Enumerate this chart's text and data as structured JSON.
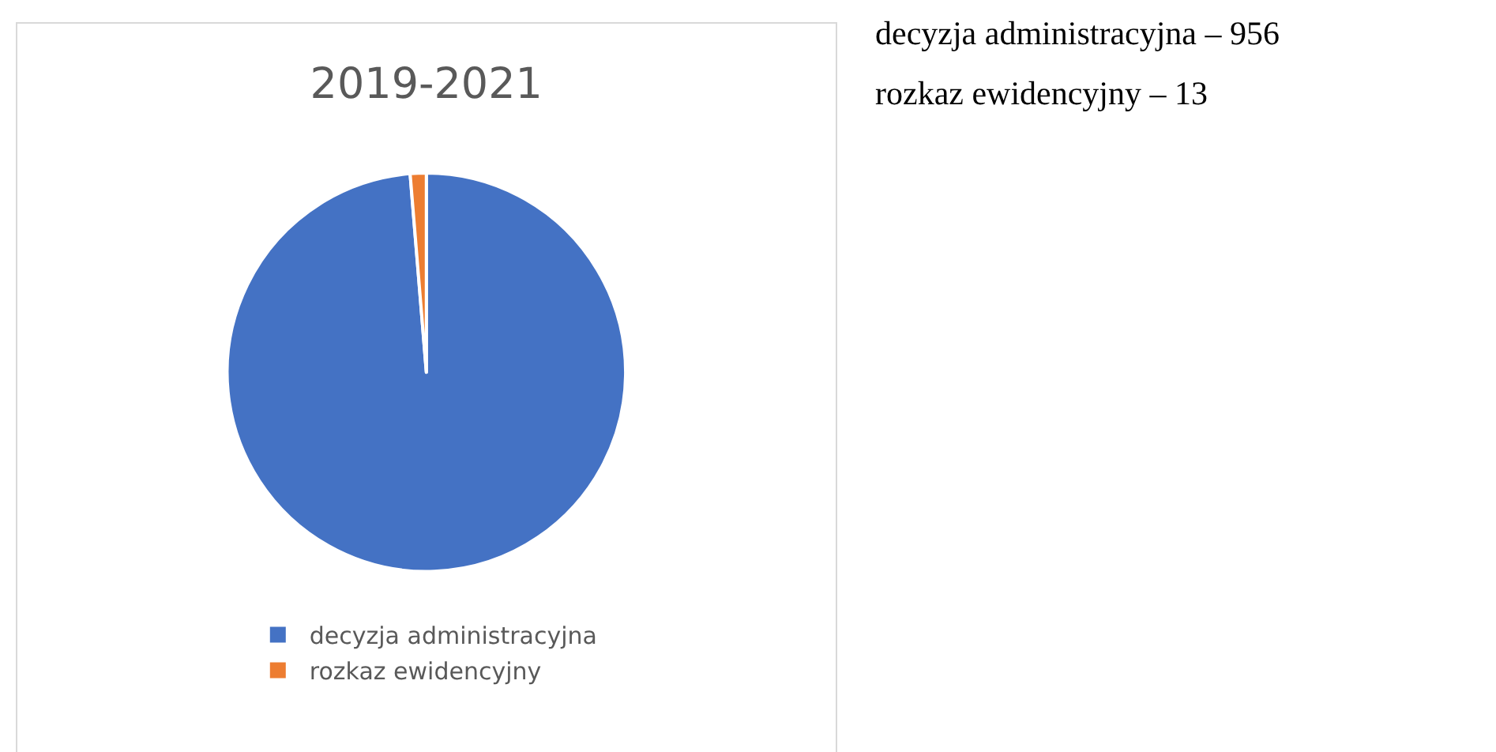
{
  "chart_data": {
    "type": "pie",
    "title": "2019-2021",
    "categories": [
      "decyzja administracyjna",
      "rozkaz ewidencyjny"
    ],
    "values": [
      98.7,
      1.3
    ],
    "colors": [
      "#4472c4",
      "#ed7d31"
    ],
    "legend": "bottom",
    "annotations": [
      "decyzja administracyjna – 956",
      "rozkaz ewidencyjny – 13"
    ]
  }
}
